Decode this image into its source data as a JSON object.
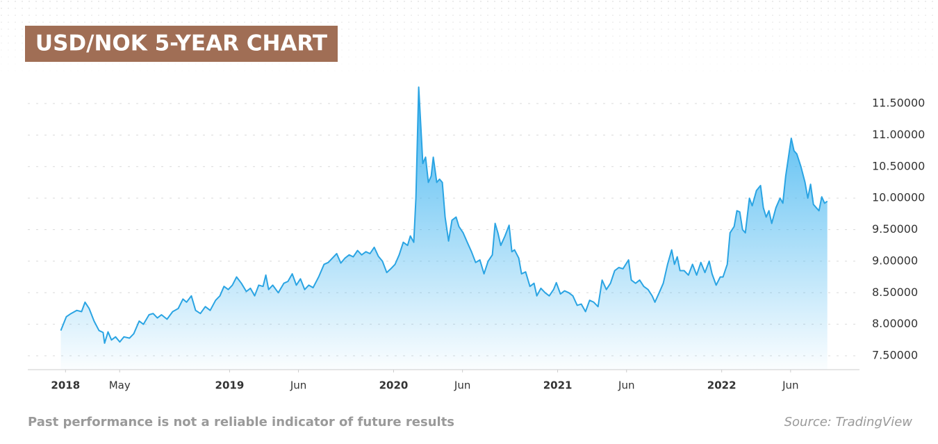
{
  "chart_data": {
    "type": "area",
    "title": "USD/NOK 5-YEAR CHART",
    "note": "Past performance is not a reliable indicator of future results",
    "source": "Source: TradingView",
    "color": "#2aa4e3",
    "fill_color": "#3db3f0",
    "grid": true,
    "xlim": [
      2017.77,
      2022.84
    ],
    "ylim": [
      7.28,
      11.82
    ],
    "xticks": [
      {
        "value": 2018,
        "label": "2018"
      },
      {
        "value": 2018.33,
        "label": "May"
      },
      {
        "value": 2019,
        "label": "2019"
      },
      {
        "value": 2019.42,
        "label": "Jun"
      },
      {
        "value": 2020,
        "label": "2020"
      },
      {
        "value": 2020.42,
        "label": "Jun"
      },
      {
        "value": 2021,
        "label": "2021"
      },
      {
        "value": 2021.42,
        "label": "Jun"
      },
      {
        "value": 2022,
        "label": "2022"
      },
      {
        "value": 2022.42,
        "label": "Jun"
      }
    ],
    "yticks": [
      {
        "value": 7.5,
        "label": "7.50000"
      },
      {
        "value": 8,
        "label": "8.00000"
      },
      {
        "value": 8.5,
        "label": "8.50000"
      },
      {
        "value": 9,
        "label": "9.00000"
      },
      {
        "value": 9.5,
        "label": "9.50000"
      },
      {
        "value": 10,
        "label": "10.00000"
      },
      {
        "value": 10.5,
        "label": "10.50000"
      },
      {
        "value": 11,
        "label": "11.00000"
      },
      {
        "value": 11.5,
        "label": "11.50000"
      }
    ],
    "x": [
      2017.971,
      2018.005,
      2018.034,
      2018.068,
      2018.098,
      2018.119,
      2018.144,
      2018.174,
      2018.204,
      2018.229,
      2018.238,
      2018.259,
      2018.28,
      2018.305,
      2018.331,
      2018.356,
      2018.39,
      2018.416,
      2018.449,
      2018.475,
      2018.509,
      2018.534,
      2018.56,
      2018.585,
      2018.619,
      2018.653,
      2018.687,
      2018.716,
      2018.738,
      2018.767,
      2018.793,
      2018.822,
      2018.852,
      2018.882,
      2018.915,
      2018.941,
      2018.966,
      2018.992,
      2019.017,
      2019.043,
      2019.072,
      2019.102,
      2019.127,
      2019.153,
      2019.178,
      2019.204,
      2019.221,
      2019.238,
      2019.263,
      2019.297,
      2019.331,
      2019.356,
      2019.382,
      2019.407,
      2019.432,
      2019.458,
      2019.483,
      2019.509,
      2019.543,
      2019.576,
      2019.602,
      2019.627,
      2019.653,
      2019.678,
      2019.704,
      2019.729,
      2019.754,
      2019.78,
      2019.805,
      2019.831,
      2019.856,
      2019.882,
      2019.907,
      2019.932,
      2019.958,
      2019.983,
      2020.009,
      2020.034,
      2020.059,
      2020.085,
      2020.102,
      2020.123,
      2020.136,
      2020.153,
      2020.17,
      2020.178,
      2020.195,
      2020.212,
      2020.229,
      2020.242,
      2020.263,
      2020.28,
      2020.297,
      2020.314,
      2020.335,
      2020.356,
      2020.381,
      2020.398,
      2020.424,
      2020.449,
      2020.475,
      2020.5,
      2020.526,
      2020.551,
      2020.576,
      2020.602,
      2020.619,
      2020.636,
      2020.653,
      2020.679,
      2020.704,
      2020.721,
      2020.737,
      2020.763,
      2020.78,
      2020.805,
      2020.831,
      2020.856,
      2020.873,
      2020.898,
      2020.924,
      2020.949,
      2020.975,
      2020.992,
      2021.017,
      2021.042,
      2021.068,
      2021.093,
      2021.119,
      2021.144,
      2021.17,
      2021.195,
      2021.22,
      2021.246,
      2021.271,
      2021.297,
      2021.322,
      2021.348,
      2021.373,
      2021.398,
      2021.432,
      2021.449,
      2021.475,
      2021.5,
      2021.525,
      2021.551,
      2021.576,
      2021.593,
      2021.619,
      2021.644,
      2021.67,
      2021.695,
      2021.712,
      2021.729,
      2021.746,
      2021.771,
      2021.797,
      2021.822,
      2021.847,
      2021.873,
      2021.898,
      2021.924,
      2021.941,
      2021.966,
      2021.991,
      2022.008,
      2022.034,
      2022.051,
      2022.076,
      2022.093,
      2022.11,
      2022.127,
      2022.144,
      2022.169,
      2022.186,
      2022.212,
      2022.237,
      2022.254,
      2022.271,
      2022.288,
      2022.305,
      2022.331,
      2022.356,
      2022.373,
      2022.39,
      2022.407,
      2022.424,
      2022.441,
      2022.458,
      2022.483,
      2022.508,
      2022.525,
      2022.542,
      2022.559,
      2022.576,
      2022.593,
      2022.61,
      2022.627,
      2022.644
    ],
    "values": [
      7.9,
      8.12,
      8.17,
      8.22,
      8.2,
      8.35,
      8.25,
      8.05,
      7.9,
      7.87,
      7.7,
      7.88,
      7.75,
      7.8,
      7.72,
      7.8,
      7.78,
      7.85,
      8.05,
      8.0,
      8.15,
      8.17,
      8.1,
      8.15,
      8.08,
      8.2,
      8.25,
      8.4,
      8.35,
      8.45,
      8.22,
      8.17,
      8.28,
      8.22,
      8.38,
      8.45,
      8.6,
      8.55,
      8.62,
      8.75,
      8.65,
      8.52,
      8.57,
      8.45,
      8.62,
      8.6,
      8.78,
      8.55,
      8.62,
      8.5,
      8.65,
      8.68,
      8.8,
      8.62,
      8.72,
      8.55,
      8.62,
      8.58,
      8.75,
      8.95,
      8.98,
      9.05,
      9.12,
      8.97,
      9.05,
      9.1,
      9.07,
      9.17,
      9.1,
      9.15,
      9.12,
      9.22,
      9.08,
      9.0,
      8.82,
      8.88,
      8.95,
      9.1,
      9.3,
      9.25,
      9.4,
      9.3,
      10.0,
      11.76,
      10.95,
      10.55,
      10.65,
      10.25,
      10.35,
      10.65,
      10.25,
      10.3,
      10.25,
      9.7,
      9.32,
      9.65,
      9.7,
      9.55,
      9.45,
      9.3,
      9.15,
      8.98,
      9.02,
      8.8,
      9.0,
      9.1,
      9.6,
      9.45,
      9.25,
      9.4,
      9.57,
      9.15,
      9.18,
      9.05,
      8.8,
      8.83,
      8.6,
      8.65,
      8.45,
      8.57,
      8.5,
      8.45,
      8.55,
      8.66,
      8.48,
      8.53,
      8.5,
      8.45,
      8.3,
      8.32,
      8.2,
      8.38,
      8.35,
      8.28,
      8.7,
      8.55,
      8.65,
      8.85,
      8.9,
      8.88,
      9.02,
      8.7,
      8.65,
      8.7,
      8.6,
      8.55,
      8.45,
      8.35,
      8.5,
      8.65,
      8.95,
      9.18,
      8.95,
      9.07,
      8.85,
      8.85,
      8.78,
      8.95,
      8.78,
      8.98,
      8.82,
      9.0,
      8.8,
      8.62,
      8.75,
      8.75,
      8.95,
      9.45,
      9.55,
      9.8,
      9.78,
      9.5,
      9.45,
      10.0,
      9.88,
      10.12,
      10.2,
      9.85,
      9.7,
      9.8,
      9.6,
      9.85,
      10.0,
      9.92,
      10.35,
      10.65,
      10.95,
      10.75,
      10.7,
      10.5,
      10.25,
      10.0,
      10.22,
      9.9,
      9.85,
      9.8,
      10.02,
      9.92,
      9.95
    ]
  }
}
